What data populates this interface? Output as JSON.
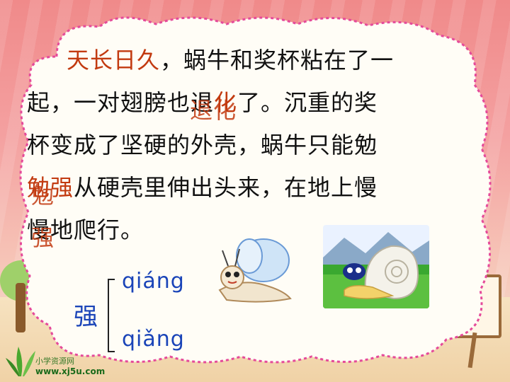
{
  "lesson": {
    "lines": [
      {
        "segments": [
          {
            "text": "天长日久",
            "style": "hl"
          },
          {
            "text": "，蜗牛和奖杯粘在了一",
            "style": ""
          }
        ],
        "indent": true
      },
      {
        "segments": [
          {
            "text": "起，一对翅膀也退",
            "style": ""
          },
          {
            "text": "化",
            "style": "strike"
          },
          {
            "text": "了。沉重的奖",
            "style": ""
          }
        ],
        "indent": false
      },
      {
        "segments": [
          {
            "text": "杯变成了坚硬的外壳，蜗牛只能勉",
            "style": ""
          }
        ],
        "indent": false
      },
      {
        "segments": [
          {
            "text": "勉强",
            "style": "strike"
          },
          {
            "text": "从硬壳里伸出头来，在地上慢",
            "style": ""
          }
        ],
        "indent": false
      },
      {
        "segments": [
          {
            "text": "慢地爬行。",
            "style": ""
          }
        ],
        "indent": false
      }
    ]
  },
  "pronunciation": {
    "character": "强",
    "reading_1": "qiáng",
    "reading_2": "qiǎng"
  },
  "overlay_words": {
    "word_1": "退化",
    "word_2": "勉强"
  },
  "logo": {
    "name": "小学资源网",
    "url": "www.xj5u.com"
  },
  "colors": {
    "highlight": "#c23a10",
    "pinyin": "#1a44b8",
    "background": "#f4a0a0"
  }
}
